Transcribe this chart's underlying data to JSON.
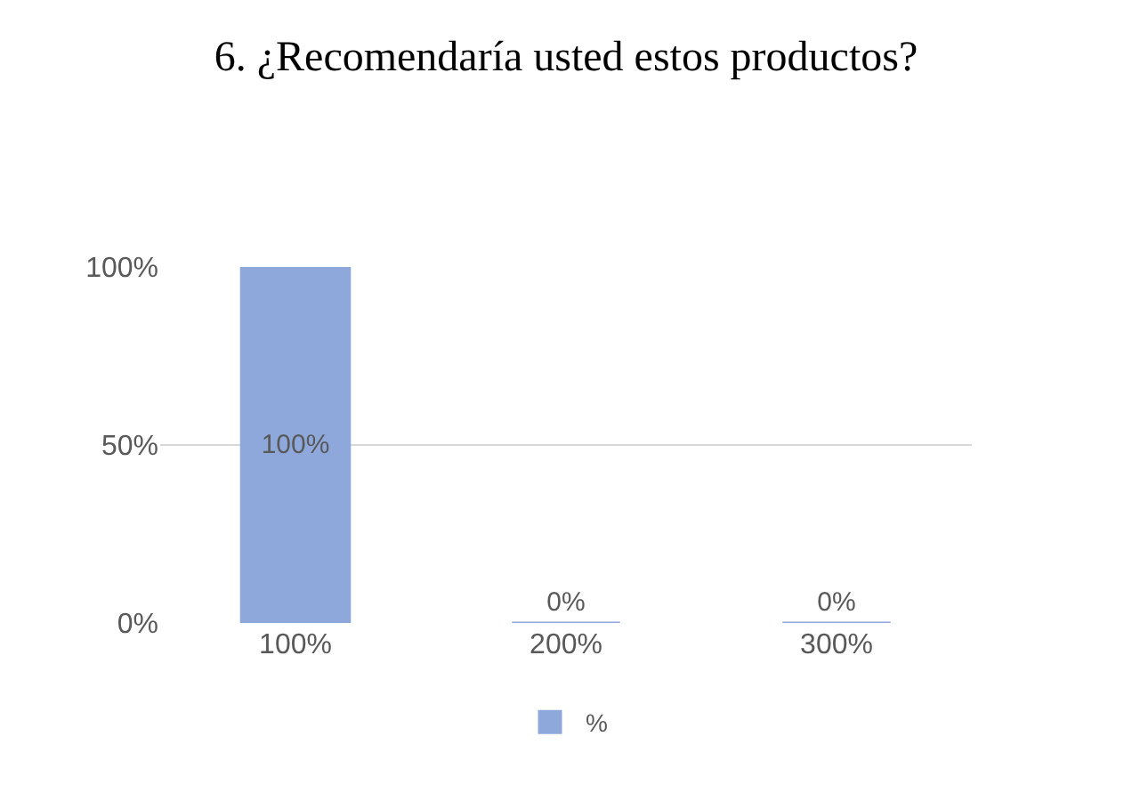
{
  "chart_data": {
    "type": "bar",
    "title": "6. ¿Recomendaría usted estos productos?",
    "categories": [
      "100%",
      "200%",
      "300%"
    ],
    "series": [
      {
        "name": "%",
        "color": "#8fa8dc",
        "values": [
          100,
          0,
          0
        ],
        "value_labels": [
          "100%",
          "0%",
          "0%"
        ]
      }
    ],
    "ylim": [
      0,
      100
    ],
    "yticks": [
      {
        "value": 0,
        "label": "0%"
      },
      {
        "value": 50,
        "label": "50%"
      },
      {
        "value": 100,
        "label": "100%"
      }
    ],
    "grid": "y",
    "legend": "bottom"
  }
}
